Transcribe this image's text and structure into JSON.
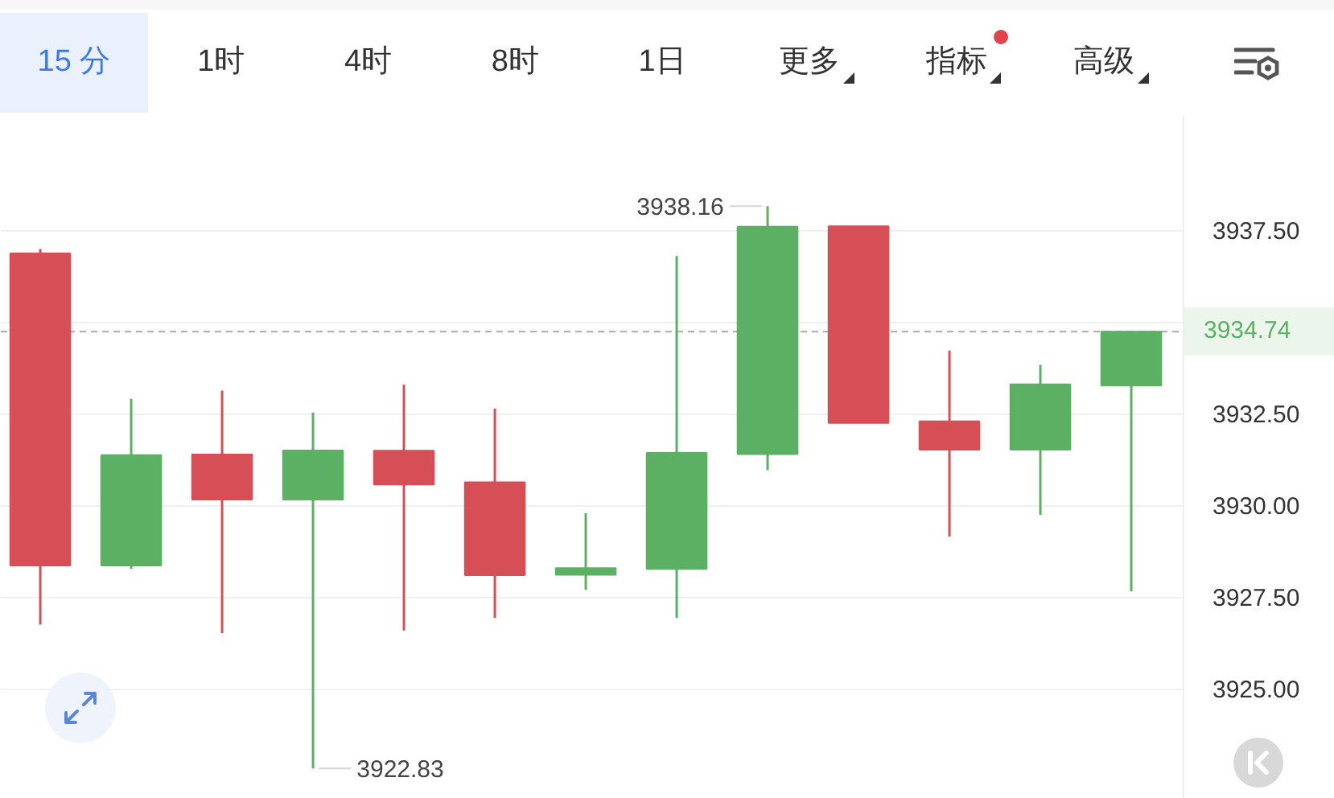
{
  "chart_data": {
    "type": "candlestick",
    "categories": [
      null,
      null,
      null,
      null,
      null,
      null,
      null,
      null,
      null,
      null,
      null,
      null,
      null
    ],
    "ohlc": [
      [
        3936.87,
        3936.99,
        3926.75,
        3928.36
      ],
      [
        3928.36,
        3932.91,
        3928.27,
        3931.37
      ],
      [
        3931.39,
        3933.13,
        3926.52,
        3930.16
      ],
      [
        3930.16,
        3932.53,
        3922.83,
        3931.5
      ],
      [
        3931.49,
        3933.29,
        3926.59,
        3930.57
      ],
      [
        3930.63,
        3932.64,
        3926.93,
        3928.1
      ],
      [
        3928.11,
        3929.79,
        3927.7,
        3928.29
      ],
      [
        3928.27,
        3936.8,
        3926.93,
        3931.43
      ],
      [
        3931.4,
        3938.16,
        3930.96,
        3937.6
      ],
      [
        3937.61,
        3937.61,
        3932.25,
        3932.25
      ],
      [
        3932.29,
        3934.22,
        3929.15,
        3931.52
      ],
      [
        3931.52,
        3933.83,
        3929.74,
        3933.3
      ],
      [
        3933.27,
        3934.74,
        3927.66,
        3934.74
      ]
    ],
    "colors": [
      "#d64f57",
      "#5cb063",
      "#d64f57",
      "#5cb063",
      "#d64f57",
      "#d64f57",
      "#5cb063",
      "#5cb063",
      "#5cb063",
      "#d64f57",
      "#d64f57",
      "#5cb063",
      "#5cb063"
    ],
    "ylim": [
      3922.0,
      3940.6
    ],
    "yticks": [
      {
        "value": 3925,
        "label": "3925.00"
      },
      {
        "value": 3927.5,
        "label": "3927.50"
      },
      {
        "value": 3930,
        "label": "3930.00"
      },
      {
        "value": 3932.5,
        "label": "3932.50"
      },
      {
        "value": 3935,
        "label": null
      },
      {
        "value": 3937.5,
        "label": "3937.50"
      }
    ],
    "grid": "y",
    "tick_labels": "y",
    "ref_lines": [
      {
        "axis": "y",
        "value": 3934.74,
        "label": "3934.74",
        "color": "#aaaaaa",
        "line_style": "dashed"
      }
    ],
    "annotations": [
      "15 分",
      "1时",
      "4时",
      "8时",
      "1日",
      "更多",
      "指标",
      "高级",
      "3938.16",
      "3922.83"
    ]
  }
}
